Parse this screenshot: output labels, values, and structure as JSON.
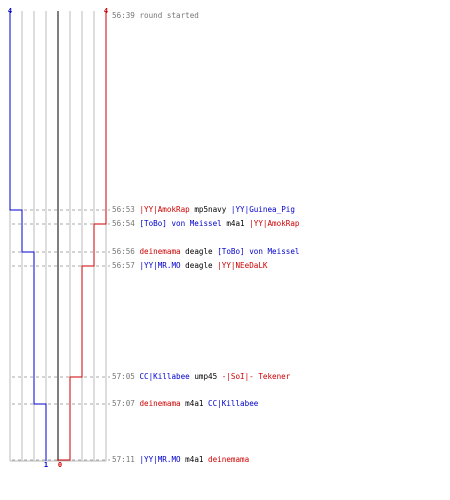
{
  "colors": {
    "team_blue": "#0000cc",
    "team_red": "#cc0000",
    "time": "#777777",
    "weapon": "#000000",
    "grid": "#bbbbbb",
    "center_line": "#555555",
    "dash": "#aaaaaa"
  },
  "chart_data": {
    "type": "line",
    "y_axis": "time",
    "series": [
      {
        "team": "blue",
        "start": 4,
        "end": 1,
        "steps": [
          {
            "time": "56:53",
            "value": 3
          },
          {
            "time": "56:56",
            "value": 2
          },
          {
            "time": "57:07",
            "value": 1
          }
        ]
      },
      {
        "team": "red",
        "start": 4,
        "end": 0,
        "steps": [
          {
            "time": "56:54",
            "value": 3
          },
          {
            "time": "56:57",
            "value": 2
          },
          {
            "time": "57:05",
            "value": 1
          },
          {
            "time": "57:11",
            "value": 0
          }
        ]
      }
    ],
    "labels": {
      "blue_start": "4",
      "red_start": "4",
      "blue_end": "1",
      "red_end": "0"
    }
  },
  "log": [
    {
      "time": "56:39",
      "start_text": "round started"
    },
    {
      "time": "56:53",
      "killer": "|YY|AmokRap",
      "killer_team": "red",
      "weapon": "mp5navy",
      "victim": "|YY|Guinea_Pig",
      "victim_team": "blue"
    },
    {
      "time": "56:54",
      "killer": "[ToBo] von Meissel",
      "killer_team": "blue",
      "weapon": "m4a1",
      "victim": "|YY|AmokRap",
      "victim_team": "red"
    },
    {
      "time": "56:56",
      "killer": "deinemama",
      "killer_team": "red",
      "weapon": "deagle",
      "victim": "[ToBo] von Meissel",
      "victim_team": "blue"
    },
    {
      "time": "56:57",
      "killer": "|YY|MR.MO",
      "killer_team": "blue",
      "weapon": "deagle",
      "victim": "|YY|NEeDaLK",
      "victim_team": "red"
    },
    {
      "time": "57:05",
      "killer": "CC|Killabee",
      "killer_team": "blue",
      "weapon": "ump45",
      "victim": "-|SoI|- Tekener",
      "victim_team": "red"
    },
    {
      "time": "57:07",
      "killer": "deinemama",
      "killer_team": "red",
      "weapon": "m4a1",
      "victim": "CC|Killabee",
      "victim_team": "blue"
    },
    {
      "time": "57:11",
      "killer": "|YY|MR.MO",
      "killer_team": "blue",
      "weapon": "m4a1",
      "victim": "deinemama",
      "victim_team": "red"
    }
  ]
}
